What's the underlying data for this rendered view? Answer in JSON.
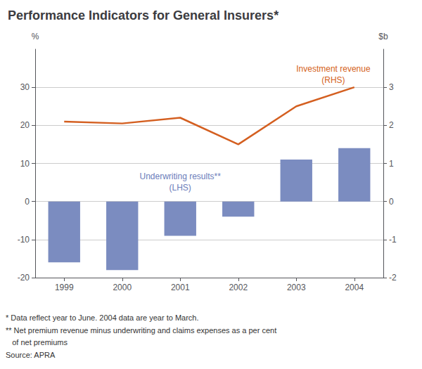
{
  "chart_data": {
    "type": "bar",
    "title": "Performance Indicators for General Insurers*",
    "categories": [
      "1999",
      "2000",
      "2001",
      "2002",
      "2003",
      "2004"
    ],
    "series": [
      {
        "type": "bar",
        "color": "#7b8cc0",
        "values": [
          -16,
          -18,
          -9,
          -4,
          11,
          14
        ]
      },
      {
        "type": "line",
        "color": "#d45f20",
        "axis": "y2",
        "values": [
          2.1,
          2.05,
          2.2,
          1.5,
          2.5,
          3.0
        ]
      }
    ],
    "ylabel": "%",
    "y2label": "$b",
    "ylim": [
      -20,
      40
    ],
    "yticks": [
      -20,
      -10,
      0,
      10,
      20,
      30
    ],
    "y2lim": [
      -2,
      4
    ],
    "y2ticks": [
      -2,
      -1,
      0,
      1,
      2,
      3
    ],
    "grid": true,
    "annotations": [
      {
        "text": "Underwriting results**\n(LHS)",
        "color": "#6b7dba"
      },
      {
        "text": "Investment revenue\n(RHS)",
        "color": "#d45f20"
      }
    ],
    "notes": [
      "* Data reflect year to June. 2004 data are year to March.",
      "** Net premium revenue minus underwriting and claims expenses as a per cent",
      "   of net premiums"
    ],
    "source": "Source: APRA"
  }
}
